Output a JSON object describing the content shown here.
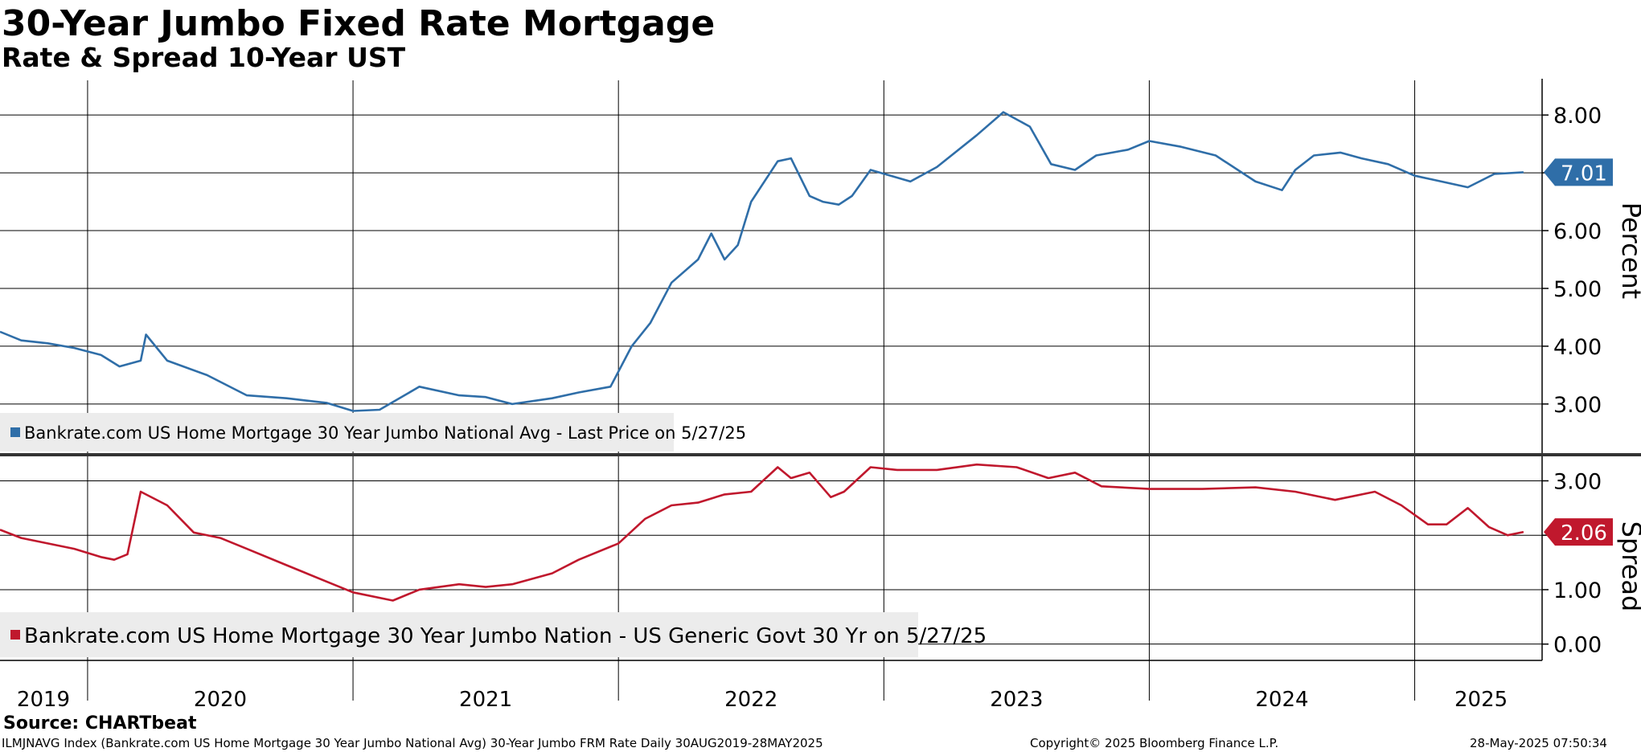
{
  "header": {
    "title": "30-Year Jumbo Fixed Rate Mortgage",
    "subtitle": "Rate & Spread 10-Year UST"
  },
  "footer": {
    "source": "Source: CHARTbeat",
    "ticker": "ILMJNAVG Index (Bankrate.com US Home Mortgage 30 Year Jumbo National Avg) 30-Year Jumbo FRM Rate  Daily 30AUG2019-28MAY2025",
    "copyright": "Copyright© 2025 Bloomberg Finance L.P.",
    "timestamp": "28-May-2025 07:50:34"
  },
  "chart_data": [
    {
      "type": "line",
      "title": "30-Year Jumbo Fixed Rate Mortgage",
      "ylabel": "Percent",
      "ylim": [
        2.15,
        8.6
      ],
      "yticks": [
        "3.00",
        "4.00",
        "5.00",
        "6.00",
        "7.00",
        "8.00"
      ],
      "legend": "Bankrate.com US Home Mortgage 30 Year Jumbo National Avg - Last Price on 5/27/25",
      "last_value_label": "7.01",
      "color": "#2f6ea8",
      "series": [
        {
          "name": "Bankrate.com US Home Mortgage 30 Year Jumbo National Avg",
          "x": [
            2019.67,
            2019.75,
            2019.85,
            2019.95,
            2020.05,
            2020.12,
            2020.2,
            2020.22,
            2020.3,
            2020.45,
            2020.6,
            2020.75,
            2020.9,
            2021.0,
            2021.1,
            2021.25,
            2021.4,
            2021.5,
            2021.6,
            2021.75,
            2021.85,
            2021.97,
            2022.05,
            2022.12,
            2022.2,
            2022.3,
            2022.35,
            2022.4,
            2022.45,
            2022.5,
            2022.6,
            2022.65,
            2022.72,
            2022.77,
            2022.83,
            2022.88,
            2022.95,
            2023.1,
            2023.2,
            2023.35,
            2023.45,
            2023.55,
            2023.63,
            2023.72,
            2023.8,
            2023.92,
            2024.0,
            2024.12,
            2024.25,
            2024.4,
            2024.5,
            2024.55,
            2024.62,
            2024.72,
            2024.8,
            2024.9,
            2025.0,
            2025.1,
            2025.2,
            2025.3,
            2025.41
          ],
          "values": [
            4.25,
            4.1,
            4.05,
            3.97,
            3.85,
            3.65,
            3.75,
            4.2,
            3.75,
            3.5,
            3.15,
            3.1,
            3.02,
            2.88,
            2.9,
            3.3,
            3.15,
            3.12,
            3.0,
            3.1,
            3.2,
            3.3,
            4.0,
            4.4,
            5.1,
            5.5,
            5.95,
            5.5,
            5.75,
            6.5,
            7.2,
            7.25,
            6.6,
            6.5,
            6.45,
            6.6,
            7.05,
            6.85,
            7.1,
            7.65,
            8.05,
            7.8,
            7.15,
            7.05,
            7.3,
            7.4,
            7.55,
            7.45,
            7.3,
            6.85,
            6.7,
            7.05,
            7.3,
            7.35,
            7.25,
            7.15,
            6.95,
            6.85,
            6.75,
            6.98,
            7.01
          ]
        }
      ]
    },
    {
      "type": "line",
      "title": "Spread",
      "ylabel": "Spread",
      "ylim": [
        -0.3,
        3.45
      ],
      "yticks": [
        "0.00",
        "1.00",
        "2.00",
        "3.00"
      ],
      "legend": "Bankrate.com US Home Mortgage 30 Year Jumbo Nation - US Generic Govt 30 Yr on 5/27/25",
      "last_value_label": "2.06",
      "color": "#c0182d",
      "series": [
        {
          "name": "Bankrate.com US Home Mortgage 30 Year Jumbo Nation - US Generic Govt 30 Yr",
          "x": [
            2019.67,
            2019.75,
            2019.85,
            2019.95,
            2020.05,
            2020.1,
            2020.15,
            2020.2,
            2020.3,
            2020.4,
            2020.5,
            2020.6,
            2020.75,
            2020.9,
            2021.0,
            2021.15,
            2021.25,
            2021.4,
            2021.5,
            2021.6,
            2021.75,
            2021.85,
            2022.0,
            2022.1,
            2022.2,
            2022.3,
            2022.4,
            2022.5,
            2022.6,
            2022.65,
            2022.72,
            2022.8,
            2022.85,
            2022.95,
            2023.05,
            2023.2,
            2023.35,
            2023.5,
            2023.62,
            2023.72,
            2023.82,
            2024.0,
            2024.2,
            2024.4,
            2024.55,
            2024.7,
            2024.85,
            2024.95,
            2025.05,
            2025.12,
            2025.2,
            2025.28,
            2025.35,
            2025.41
          ],
          "values": [
            2.1,
            1.95,
            1.85,
            1.75,
            1.6,
            1.55,
            1.65,
            2.8,
            2.55,
            2.05,
            1.95,
            1.75,
            1.45,
            1.15,
            0.95,
            0.8,
            1.0,
            1.1,
            1.05,
            1.1,
            1.3,
            1.55,
            1.85,
            2.3,
            2.55,
            2.6,
            2.75,
            2.8,
            3.25,
            3.05,
            3.15,
            2.7,
            2.8,
            3.25,
            3.2,
            3.2,
            3.3,
            3.25,
            3.05,
            3.15,
            2.9,
            2.85,
            2.85,
            2.88,
            2.8,
            2.65,
            2.8,
            2.55,
            2.2,
            2.2,
            2.5,
            2.15,
            2.0,
            2.06
          ]
        }
      ]
    },
    {
      "type": "axis",
      "xlim": [
        2019.67,
        2025.48
      ],
      "categories": [
        "2019",
        "2020",
        "2021",
        "2022",
        "2023",
        "2024",
        "2025"
      ],
      "grid": true
    }
  ]
}
